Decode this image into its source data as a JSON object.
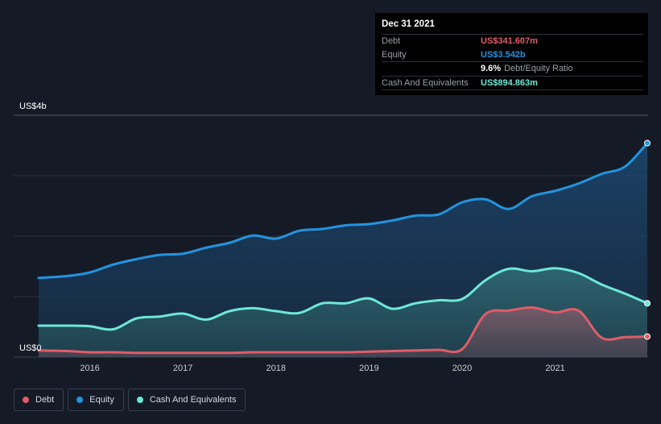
{
  "tooltip": {
    "date": "Dec 31 2021",
    "rows": [
      {
        "label": "Debt",
        "value": "US$341.607m"
      },
      {
        "label": "Equity",
        "value": "US$3.542b"
      },
      {
        "ratio_value": "9.6%",
        "ratio_label": "Debt/Equity Ratio"
      },
      {
        "label": "Cash And Equivalents",
        "value": "US$894.863m"
      }
    ]
  },
  "legend": [
    {
      "label": "Debt",
      "color": "#e05c69"
    },
    {
      "label": "Equity",
      "color": "#2394df"
    },
    {
      "label": "Cash And Equivalents",
      "color": "#6ee7d7"
    }
  ],
  "chart_data": {
    "type": "area",
    "ylabel_top": "US$4b",
    "ylabel_bottom": "US$0",
    "ylim": [
      0,
      4
    ],
    "xlim": [
      2015.45,
      2021.99
    ],
    "x_ticks": [
      {
        "label": "2016",
        "x": 2016.0
      },
      {
        "label": "2017",
        "x": 2017.0
      },
      {
        "label": "2018",
        "x": 2018.0
      },
      {
        "label": "2019",
        "x": 2019.0
      },
      {
        "label": "2020",
        "x": 2020.0
      },
      {
        "label": "2021",
        "x": 2021.0
      }
    ],
    "grid": true,
    "legend_position": "bottom-left",
    "series": [
      {
        "name": "Equity",
        "color": "#2394df",
        "points": [
          [
            2015.45,
            1.31
          ],
          [
            2015.75,
            1.34
          ],
          [
            2016.0,
            1.4
          ],
          [
            2016.25,
            1.53
          ],
          [
            2016.5,
            1.62
          ],
          [
            2016.75,
            1.69
          ],
          [
            2017.0,
            1.71
          ],
          [
            2017.25,
            1.81
          ],
          [
            2017.5,
            1.89
          ],
          [
            2017.75,
            2.01
          ],
          [
            2018.0,
            1.96
          ],
          [
            2018.25,
            2.09
          ],
          [
            2018.5,
            2.12
          ],
          [
            2018.75,
            2.18
          ],
          [
            2019.0,
            2.2
          ],
          [
            2019.25,
            2.26
          ],
          [
            2019.5,
            2.34
          ],
          [
            2019.75,
            2.36
          ],
          [
            2020.0,
            2.56
          ],
          [
            2020.25,
            2.61
          ],
          [
            2020.5,
            2.45
          ],
          [
            2020.75,
            2.66
          ],
          [
            2021.0,
            2.75
          ],
          [
            2021.25,
            2.87
          ],
          [
            2021.5,
            3.03
          ],
          [
            2021.75,
            3.15
          ],
          [
            2021.99,
            3.54
          ]
        ]
      },
      {
        "name": "Cash And Equivalents",
        "color": "#6ee7d7",
        "points": [
          [
            2015.45,
            0.52
          ],
          [
            2015.75,
            0.52
          ],
          [
            2016.0,
            0.51
          ],
          [
            2016.25,
            0.46
          ],
          [
            2016.5,
            0.64
          ],
          [
            2016.75,
            0.67
          ],
          [
            2017.0,
            0.72
          ],
          [
            2017.25,
            0.62
          ],
          [
            2017.5,
            0.76
          ],
          [
            2017.75,
            0.81
          ],
          [
            2018.0,
            0.76
          ],
          [
            2018.25,
            0.73
          ],
          [
            2018.5,
            0.89
          ],
          [
            2018.75,
            0.89
          ],
          [
            2019.0,
            0.97
          ],
          [
            2019.25,
            0.8
          ],
          [
            2019.5,
            0.89
          ],
          [
            2019.75,
            0.94
          ],
          [
            2020.0,
            0.96
          ],
          [
            2020.25,
            1.27
          ],
          [
            2020.5,
            1.46
          ],
          [
            2020.75,
            1.42
          ],
          [
            2021.0,
            1.47
          ],
          [
            2021.25,
            1.39
          ],
          [
            2021.5,
            1.2
          ],
          [
            2021.75,
            1.05
          ],
          [
            2021.99,
            0.89
          ]
        ]
      },
      {
        "name": "Debt",
        "color": "#e05c69",
        "points": [
          [
            2015.45,
            0.11
          ],
          [
            2015.75,
            0.1
          ],
          [
            2016.0,
            0.08
          ],
          [
            2016.25,
            0.08
          ],
          [
            2016.5,
            0.07
          ],
          [
            2016.75,
            0.07
          ],
          [
            2017.0,
            0.07
          ],
          [
            2017.25,
            0.07
          ],
          [
            2017.5,
            0.07
          ],
          [
            2017.75,
            0.08
          ],
          [
            2018.0,
            0.08
          ],
          [
            2018.25,
            0.08
          ],
          [
            2018.5,
            0.08
          ],
          [
            2018.75,
            0.08
          ],
          [
            2019.0,
            0.09
          ],
          [
            2019.25,
            0.1
          ],
          [
            2019.5,
            0.11
          ],
          [
            2019.75,
            0.12
          ],
          [
            2020.0,
            0.13
          ],
          [
            2020.25,
            0.71
          ],
          [
            2020.5,
            0.77
          ],
          [
            2020.75,
            0.82
          ],
          [
            2021.0,
            0.74
          ],
          [
            2021.25,
            0.77
          ],
          [
            2021.5,
            0.32
          ],
          [
            2021.75,
            0.33
          ],
          [
            2021.99,
            0.34
          ]
        ]
      }
    ]
  }
}
